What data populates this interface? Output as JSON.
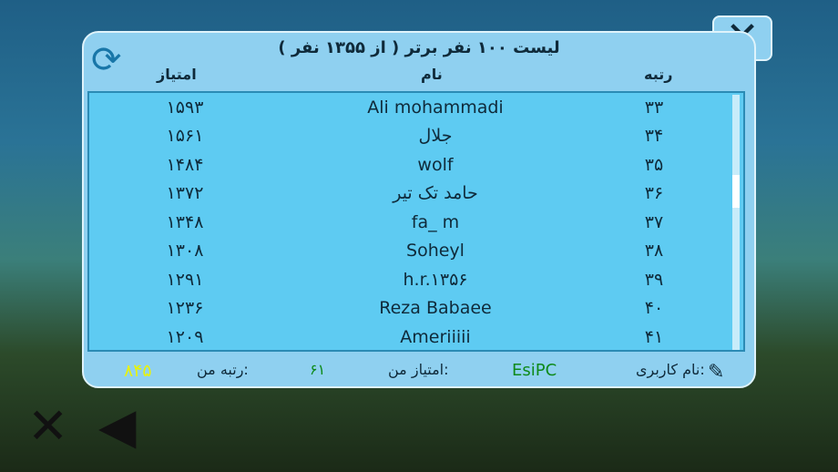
{
  "title": "لیست ۱۰۰ نفر برتر ( از ۱۳۵۵ نفر )",
  "headers": {
    "score": "امتیاز",
    "name": "نام",
    "rank": "رتبه"
  },
  "rows": [
    {
      "score": "۱۵۹۳",
      "name": "Ali mohammadi",
      "rank": "۳۳"
    },
    {
      "score": "۱۵۶۱",
      "name": "جلال",
      "rank": "۳۴"
    },
    {
      "score": "۱۴۸۴",
      "name": "wolf",
      "rank": "۳۵"
    },
    {
      "score": "۱۳۷۲",
      "name": "حامد تک تیر",
      "rank": "۳۶"
    },
    {
      "score": "۱۳۴۸",
      "name": "fa_ m",
      "rank": "۳۷"
    },
    {
      "score": "۱۳۰۸",
      "name": "Soheyl",
      "rank": "۳۸"
    },
    {
      "score": "۱۲۹۱",
      "name": "h.r.۱۳۵۶",
      "rank": "۳۹"
    },
    {
      "score": "۱۲۳۶",
      "name": "Reza Babaee",
      "rank": "۴۰"
    },
    {
      "score": "۱۲۰۹",
      "name": "Ameriiiii",
      "rank": "۴۱"
    }
  ],
  "footer": {
    "username_label": "نام کاربری:",
    "username": "EsiPC",
    "my_score_label": "امتیاز من:",
    "my_score": "۶۱",
    "my_rank_label": "رتبه من:",
    "my_rank": "۸۴۵"
  },
  "colors": {
    "username": "#0e8a1a",
    "my_rank": "#e8f20a"
  }
}
